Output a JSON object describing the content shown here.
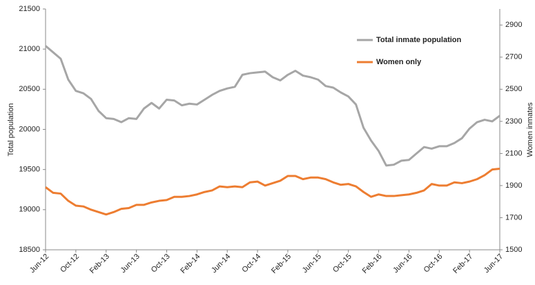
{
  "chart_data": {
    "type": "line",
    "y_label": "Total population",
    "y2_label": "Women inmates",
    "categories": [
      "Jun-12",
      null,
      null,
      null,
      "Oct-12",
      null,
      null,
      null,
      "Feb-13",
      null,
      null,
      null,
      "Jun-13",
      null,
      null,
      null,
      "Oct-13",
      null,
      null,
      null,
      "Feb-14",
      null,
      null,
      null,
      "Jun-14",
      null,
      null,
      null,
      "Oct-14",
      null,
      null,
      null,
      "Feb-15",
      null,
      null,
      null,
      "Jun-15",
      null,
      null,
      null,
      "Oct-15",
      null,
      null,
      null,
      "Feb-16",
      null,
      null,
      null,
      "Jun-16",
      null,
      null,
      null,
      "Oct-16",
      null,
      null,
      null,
      "Feb-17",
      null,
      null,
      null,
      "Jun-17"
    ],
    "series": [
      {
        "name": "Total inmate population",
        "color": "#a6a6a6",
        "axis": "y",
        "values": [
          21040,
          20960,
          20880,
          20620,
          20480,
          20450,
          20380,
          20230,
          20140,
          20130,
          20090,
          20140,
          20130,
          20260,
          20330,
          20260,
          20370,
          20360,
          20300,
          20320,
          20310,
          20370,
          20430,
          20480,
          20510,
          20530,
          20680,
          20700,
          20710,
          20720,
          20650,
          20610,
          20680,
          20730,
          20670,
          20650,
          20620,
          20540,
          20520,
          20460,
          20410,
          20310,
          20020,
          19860,
          19730,
          19550,
          19560,
          19610,
          19620,
          19700,
          19780,
          19760,
          19790,
          19790,
          19830,
          19890,
          20010,
          20090,
          20120,
          20100,
          20170
        ]
      },
      {
        "name": "Women only",
        "color": "#ed7d31",
        "axis": "y2",
        "values": [
          1890,
          1855,
          1850,
          1805,
          1775,
          1770,
          1750,
          1735,
          1720,
          1735,
          1755,
          1760,
          1780,
          1780,
          1795,
          1805,
          1810,
          1830,
          1830,
          1835,
          1845,
          1860,
          1870,
          1895,
          1890,
          1895,
          1890,
          1920,
          1925,
          1900,
          1915,
          1930,
          1960,
          1960,
          1940,
          1950,
          1950,
          1940,
          1920,
          1905,
          1910,
          1895,
          1860,
          1830,
          1845,
          1835,
          1835,
          1840,
          1845,
          1855,
          1870,
          1910,
          1900,
          1900,
          1920,
          1915,
          1925,
          1940,
          1965,
          2000,
          2005
        ]
      }
    ],
    "ylim": [
      18500,
      21500
    ],
    "yticks": [
      18500,
      19000,
      19500,
      20000,
      20500,
      21000,
      21500
    ],
    "y2lim": [
      1500,
      3000
    ],
    "y2ticks": [
      1500,
      1700,
      1900,
      2100,
      2300,
      2500,
      2700,
      2900
    ],
    "grid": false,
    "legend": "upper right"
  }
}
